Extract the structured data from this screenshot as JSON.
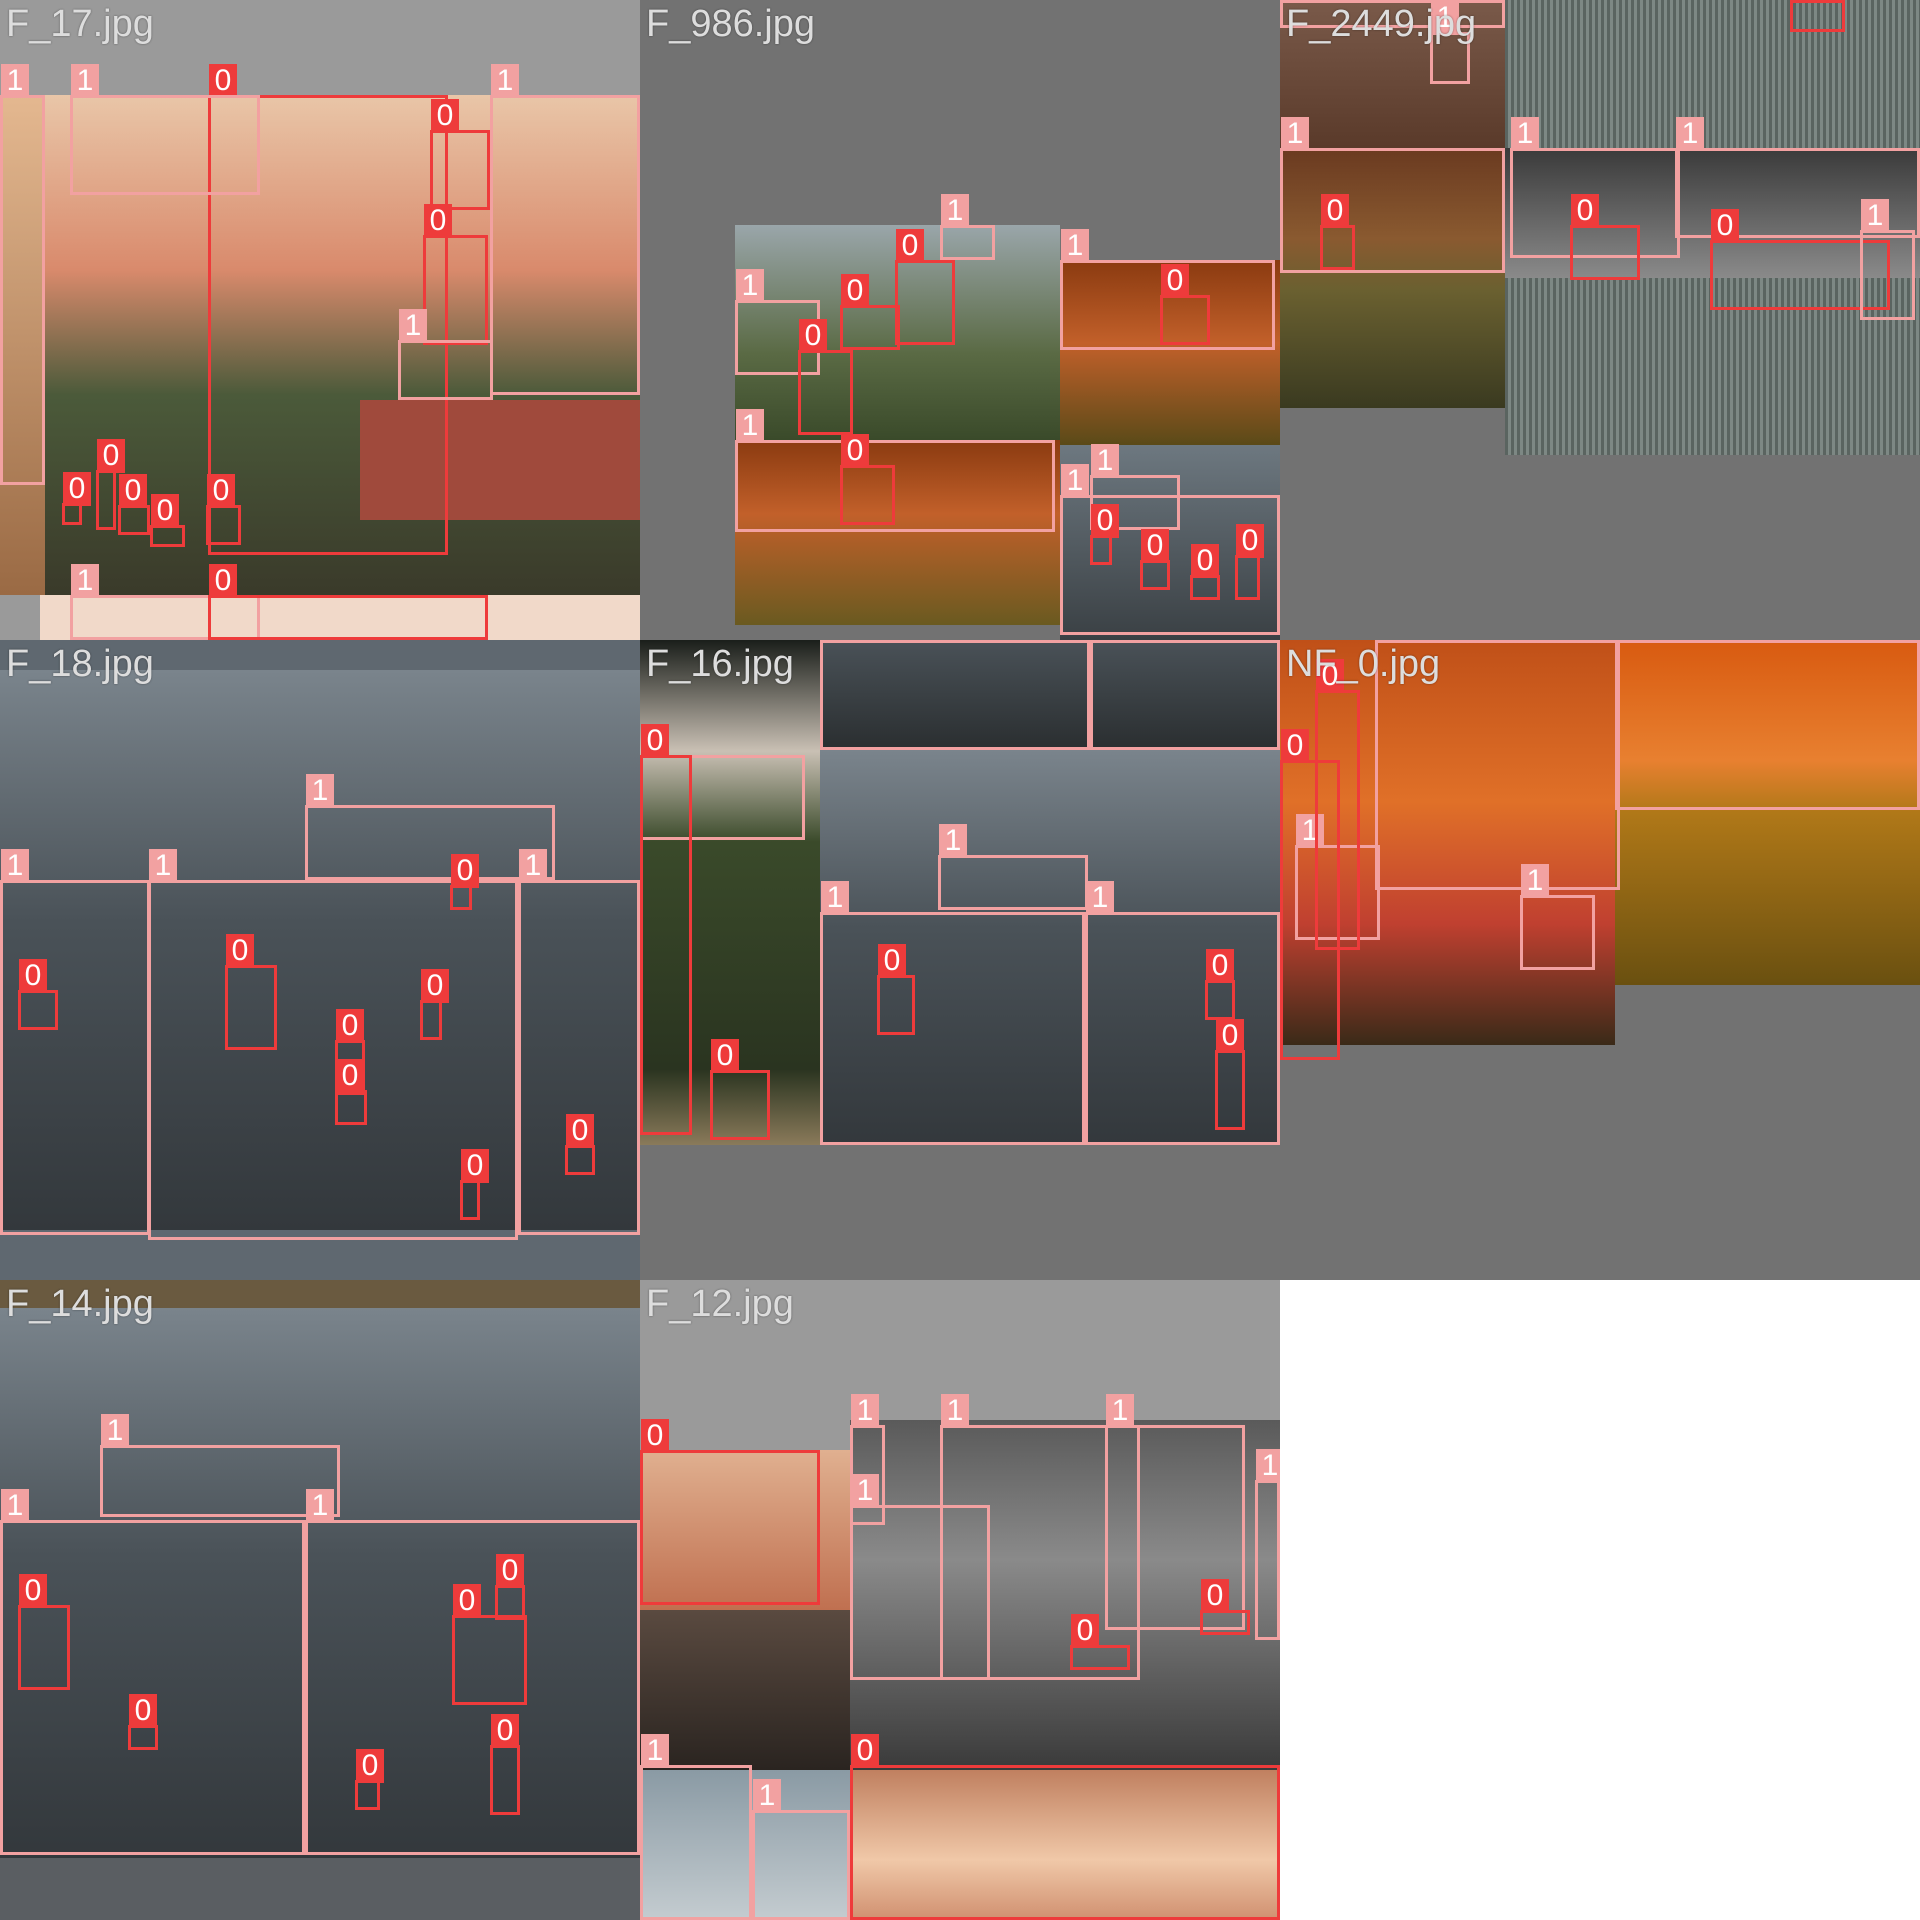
{
  "mosaic": {
    "tiles": [
      {
        "label": "F_17.jpg"
      },
      {
        "label": "F_986.jpg"
      },
      {
        "label": "F_2449.jpg"
      },
      {
        "label": "F_18.jpg"
      },
      {
        "label": "F_16.jpg"
      },
      {
        "label": "NF_0.jpg"
      },
      {
        "label": "F_14.jpg"
      },
      {
        "label": "F_12.jpg"
      }
    ],
    "class_labels": {
      "fire": "0",
      "smoke": "1"
    },
    "colors": {
      "fire": "#ee3b3b",
      "smoke": "#f2a1a1",
      "padding": "#727272"
    }
  }
}
